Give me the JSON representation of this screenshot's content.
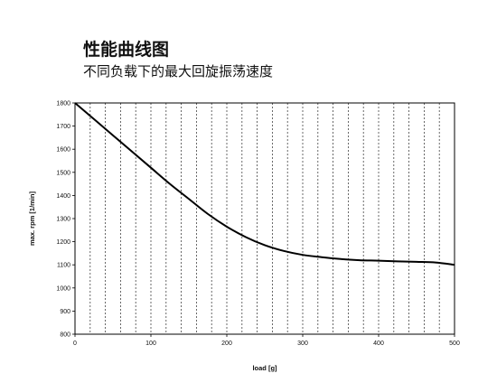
{
  "chart_data": {
    "type": "line",
    "title": "性能曲线图",
    "subtitle": "不同负载下的最大回旋振荡速度",
    "xlabel": "load [g]",
    "ylabel": "max. rpm [1/min]",
    "xlim": [
      0,
      500
    ],
    "ylim": [
      800,
      1800
    ],
    "x_ticks": [
      0,
      100,
      200,
      300,
      400,
      500
    ],
    "y_ticks": [
      800,
      900,
      1000,
      1100,
      1200,
      1300,
      1400,
      1500,
      1600,
      1700,
      1800
    ],
    "grid": {
      "vertical": "dashed, every 20",
      "horizontal": "none"
    },
    "line_color": "#000000",
    "series": [
      {
        "x": [
          0,
          25,
          50,
          75,
          100,
          125,
          150,
          175,
          200,
          225,
          250,
          275,
          300,
          325,
          350,
          375,
          400,
          425,
          450,
          475,
          500
        ],
        "values": [
          1800,
          1730,
          1660,
          1590,
          1520,
          1450,
          1385,
          1320,
          1265,
          1220,
          1185,
          1160,
          1143,
          1133,
          1125,
          1120,
          1118,
          1115,
          1113,
          1110,
          1100
        ]
      }
    ]
  }
}
